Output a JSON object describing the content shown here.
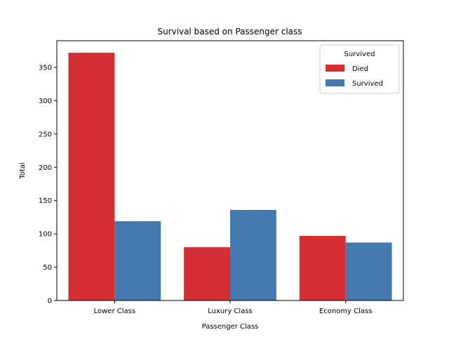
{
  "chart_data": {
    "type": "bar",
    "title": "Survival based on Passenger class",
    "xlabel": "Passenger Class",
    "ylabel": "Total",
    "categories": [
      "Lower Class",
      "Luxury Class",
      "Economy Class"
    ],
    "series": [
      {
        "name": "Died",
        "color": "#d62f33",
        "values": [
          372,
          80,
          97
        ]
      },
      {
        "name": "Survived",
        "color": "#4279ae",
        "values": [
          119,
          136,
          87
        ]
      }
    ],
    "ylim": [
      0,
      390
    ],
    "yticks": [
      0,
      50,
      100,
      150,
      200,
      250,
      300,
      350
    ],
    "legend": {
      "title": "Survived",
      "placement": "top-right"
    },
    "grid": false
  }
}
